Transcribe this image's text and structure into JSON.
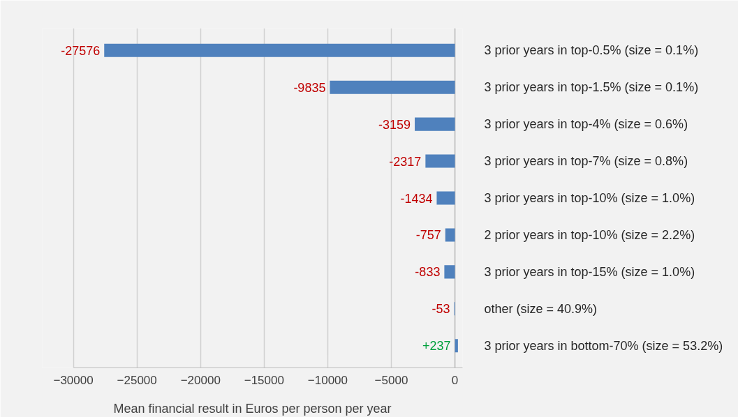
{
  "chart_data": {
    "type": "bar",
    "orientation": "horizontal",
    "xlabel": "Mean financial result in Euros per person per year",
    "categories": [
      "3 prior years in top-0.5% (size = 0.1%)",
      "3 prior years in top-1.5% (size = 0.1%)",
      "3 prior years in top-4% (size = 0.6%)",
      "3 prior years in top-7% (size = 0.8%)",
      "3 prior years in top-10% (size = 1.0%)",
      "2 prior years in top-10% (size = 2.2%)",
      "3 prior years in top-15% (size = 1.0%)",
      "other (size = 40.9%)",
      "3 prior years in bottom-70% (size = 53.2%)"
    ],
    "values": [
      -27576,
      -9835,
      -3159,
      -2317,
      -1434,
      -757,
      -833,
      -53,
      237
    ],
    "value_labels": [
      "-27576",
      "-9835",
      "-3159",
      "-2317",
      "-1434",
      "-757",
      "-833",
      "-53",
      "+237"
    ],
    "color": "#4f81bd",
    "xlim": [
      -30000,
      600
    ],
    "xticks": [
      -30000,
      -25000,
      -20000,
      -15000,
      -10000,
      -5000,
      0
    ],
    "grid": "x"
  }
}
